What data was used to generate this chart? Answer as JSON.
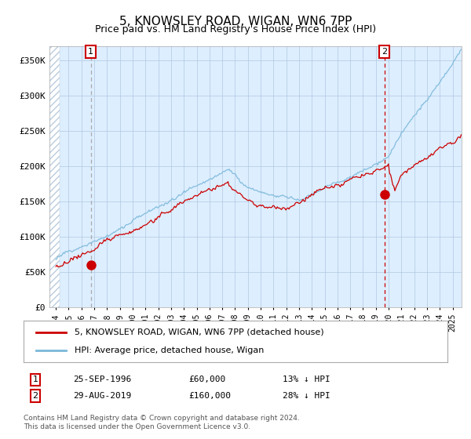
{
  "title": "5, KNOWSLEY ROAD, WIGAN, WN6 7PP",
  "subtitle": "Price paid vs. HM Land Registry's House Price Index (HPI)",
  "fig_bg_color": "#ffffff",
  "plot_bg_color": "#ddeeff",
  "hpi_color": "#7ab8d9",
  "price_color": "#cc0000",
  "marker_color": "#cc0000",
  "vline1_color": "#aaaaaa",
  "vline2_color": "#cc0000",
  "ylim": [
    0,
    370000
  ],
  "yticks": [
    0,
    50000,
    100000,
    150000,
    200000,
    250000,
    300000,
    350000
  ],
  "ytick_labels": [
    "£0",
    "£50K",
    "£100K",
    "£150K",
    "£200K",
    "£250K",
    "£300K",
    "£350K"
  ],
  "purchase1": {
    "date_num": 1996.73,
    "price": 60000,
    "label": "1",
    "date_str": "25-SEP-1996",
    "below_pct": 13
  },
  "purchase2": {
    "date_num": 2019.66,
    "price": 160000,
    "label": "2",
    "date_str": "29-AUG-2019",
    "below_pct": 28
  },
  "legend_entries": [
    "5, KNOWSLEY ROAD, WIGAN, WN6 7PP (detached house)",
    "HPI: Average price, detached house, Wigan"
  ],
  "footnote": "Contains HM Land Registry data © Crown copyright and database right 2024.\nThis data is licensed under the Open Government Licence v3.0.",
  "xmin": 1993.5,
  "xmax": 2025.7
}
